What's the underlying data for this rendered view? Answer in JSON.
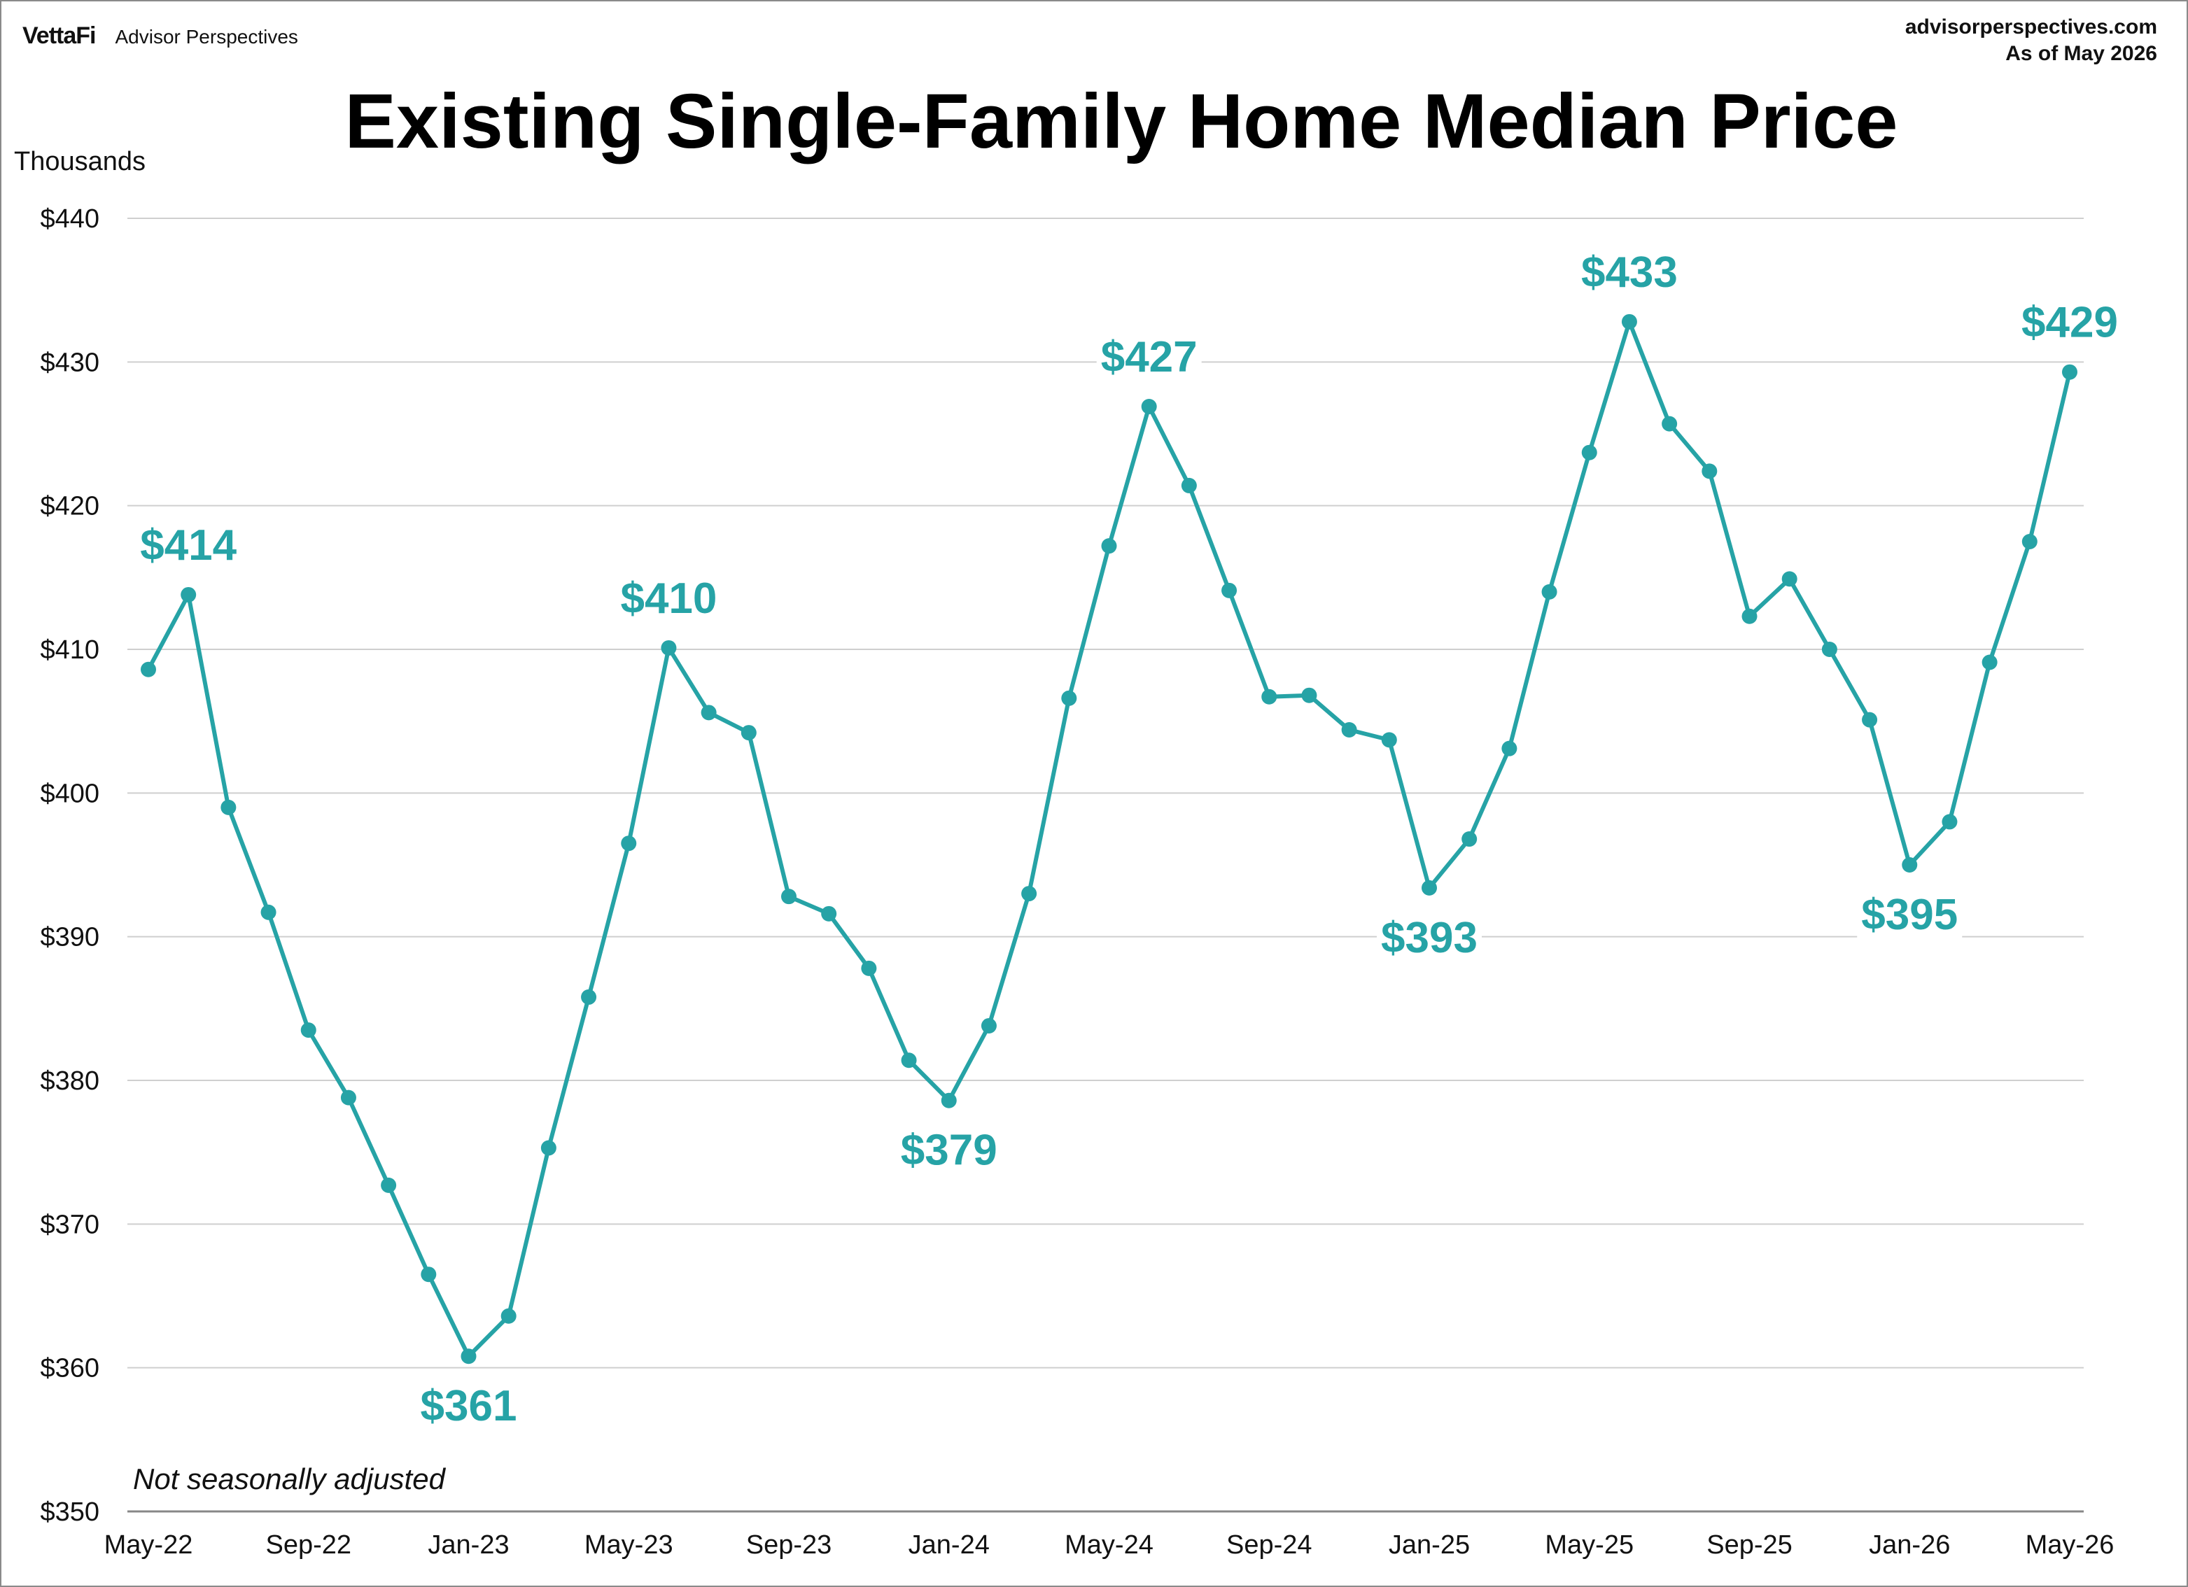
{
  "brand": {
    "logo": "VettaFi",
    "name": "Advisor Perspectives"
  },
  "source": {
    "site": "advisorperspectives.com",
    "asof": "As of May 2026"
  },
  "chart_data": {
    "type": "line",
    "title": "Existing Single-Family Home Median Price",
    "unit_label": "Thousands",
    "note": "Not seasonally adjusted",
    "ylim": [
      350,
      440
    ],
    "yticks": [
      350,
      360,
      370,
      380,
      390,
      400,
      410,
      420,
      430,
      440
    ],
    "ytick_labels": [
      "$350",
      "$360",
      "$370",
      "$380",
      "$390",
      "$400",
      "$410",
      "$420",
      "$430",
      "$440"
    ],
    "xtick_labels": [
      "May-22",
      "Sep-22",
      "Jan-23",
      "May-23",
      "Sep-23",
      "Jan-24",
      "May-24",
      "Sep-24",
      "Jan-25",
      "May-25",
      "Sep-25",
      "Jan-26",
      "May-26"
    ],
    "xtick_index": [
      0,
      4,
      8,
      12,
      16,
      20,
      24,
      28,
      32,
      36,
      40,
      44,
      48
    ],
    "grid": true,
    "legend": "none",
    "color": "#26a3a6",
    "series": [
      {
        "x": [
          "May-22",
          "Jun-22",
          "Jul-22",
          "Aug-22",
          "Sep-22",
          "Oct-22",
          "Nov-22",
          "Dec-22",
          "Jan-23",
          "Feb-23",
          "Mar-23",
          "Apr-23",
          "May-23",
          "Jun-23",
          "Jul-23",
          "Aug-23",
          "Sep-23",
          "Oct-23",
          "Nov-23",
          "Dec-23",
          "Jan-24",
          "Feb-24",
          "Mar-24",
          "Apr-24",
          "May-24",
          "Jun-24",
          "Jul-24",
          "Aug-24",
          "Sep-24",
          "Oct-24",
          "Nov-24",
          "Dec-24",
          "Jan-25",
          "Feb-25",
          "Mar-25",
          "Apr-25",
          "May-25",
          "Jun-25",
          "Jul-25",
          "Aug-25",
          "Sep-25",
          "Oct-25",
          "Nov-25",
          "Dec-25",
          "Jan-26",
          "Feb-26",
          "Mar-26",
          "Apr-26",
          "May-26"
        ],
        "values": [
          408.6,
          413.8,
          399.0,
          391.7,
          383.5,
          378.8,
          372.7,
          366.5,
          360.8,
          363.6,
          375.3,
          385.8,
          396.5,
          410.1,
          405.6,
          404.2,
          392.8,
          391.6,
          387.8,
          381.4,
          378.6,
          383.8,
          393.0,
          406.6,
          417.2,
          426.9,
          421.4,
          414.1,
          406.7,
          406.8,
          404.4,
          403.7,
          393.4,
          396.8,
          403.1,
          414.0,
          423.7,
          432.8,
          425.7,
          422.4,
          412.3,
          414.9,
          410.0,
          405.1,
          395.0,
          398.0,
          409.1,
          417.5,
          429.3
        ]
      }
    ],
    "annotations": [
      {
        "index": 1,
        "text": "$414",
        "pos": "above"
      },
      {
        "index": 8,
        "text": "$361",
        "pos": "below"
      },
      {
        "index": 13,
        "text": "$410",
        "pos": "above"
      },
      {
        "index": 20,
        "text": "$379",
        "pos": "below"
      },
      {
        "index": 25,
        "text": "$427",
        "pos": "above"
      },
      {
        "index": 32,
        "text": "$393",
        "pos": "below"
      },
      {
        "index": 37,
        "text": "$433",
        "pos": "above"
      },
      {
        "index": 44,
        "text": "$395",
        "pos": "below"
      },
      {
        "index": 48,
        "text": "$429",
        "pos": "above"
      }
    ]
  }
}
